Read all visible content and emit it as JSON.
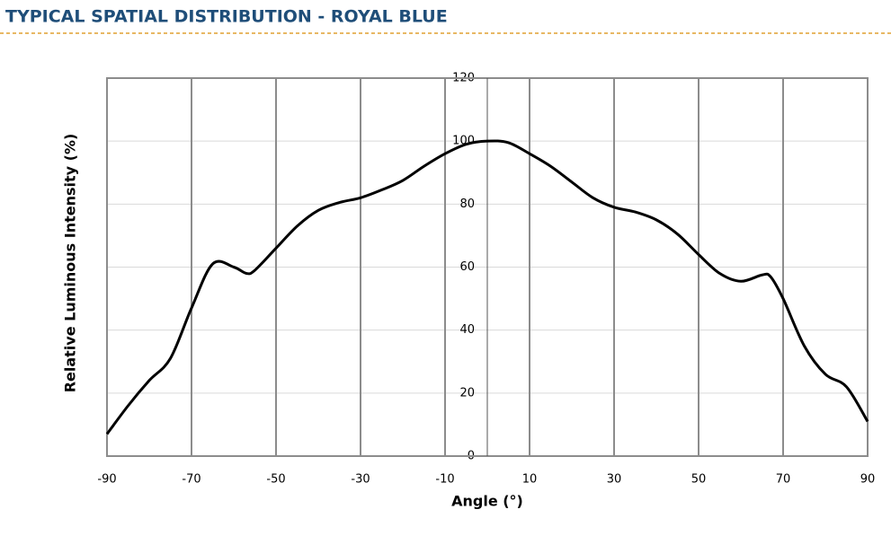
{
  "header": {
    "title": "TYPICAL SPATIAL DISTRIBUTION - ROYAL BLUE"
  },
  "chart_data": {
    "type": "line",
    "xlabel": "Angle (°)",
    "ylabel": "Relative Luminous Intensity (%)",
    "x": [
      -90,
      -85,
      -80,
      -75,
      -70,
      -65,
      -60,
      -57,
      -55,
      -50,
      -45,
      -40,
      -35,
      -30,
      -25,
      -20,
      -15,
      -10,
      -5,
      0,
      5,
      10,
      15,
      20,
      25,
      30,
      35,
      40,
      45,
      50,
      55,
      60,
      65,
      67,
      70,
      75,
      80,
      85,
      90
    ],
    "series": [
      {
        "color": "#000000",
        "values": [
          7,
          16,
          24,
          31,
          47,
          61,
          60,
          58,
          59,
          66,
          73,
          78,
          80.5,
          82,
          84.5,
          87.5,
          92,
          96,
          99,
          100,
          99.5,
          96,
          92,
          87,
          82,
          79,
          77.5,
          75,
          70.5,
          64,
          58,
          55.5,
          57.5,
          57,
          50,
          35,
          26,
          22,
          11
        ]
      }
    ],
    "xlim": [
      -90,
      90
    ],
    "xticks": [
      -90,
      -70,
      -50,
      -30,
      -10,
      10,
      30,
      50,
      70,
      90
    ],
    "ylim": [
      0,
      120
    ],
    "yticks": [
      0,
      20,
      40,
      60,
      80,
      100,
      120
    ],
    "grid": true
  }
}
